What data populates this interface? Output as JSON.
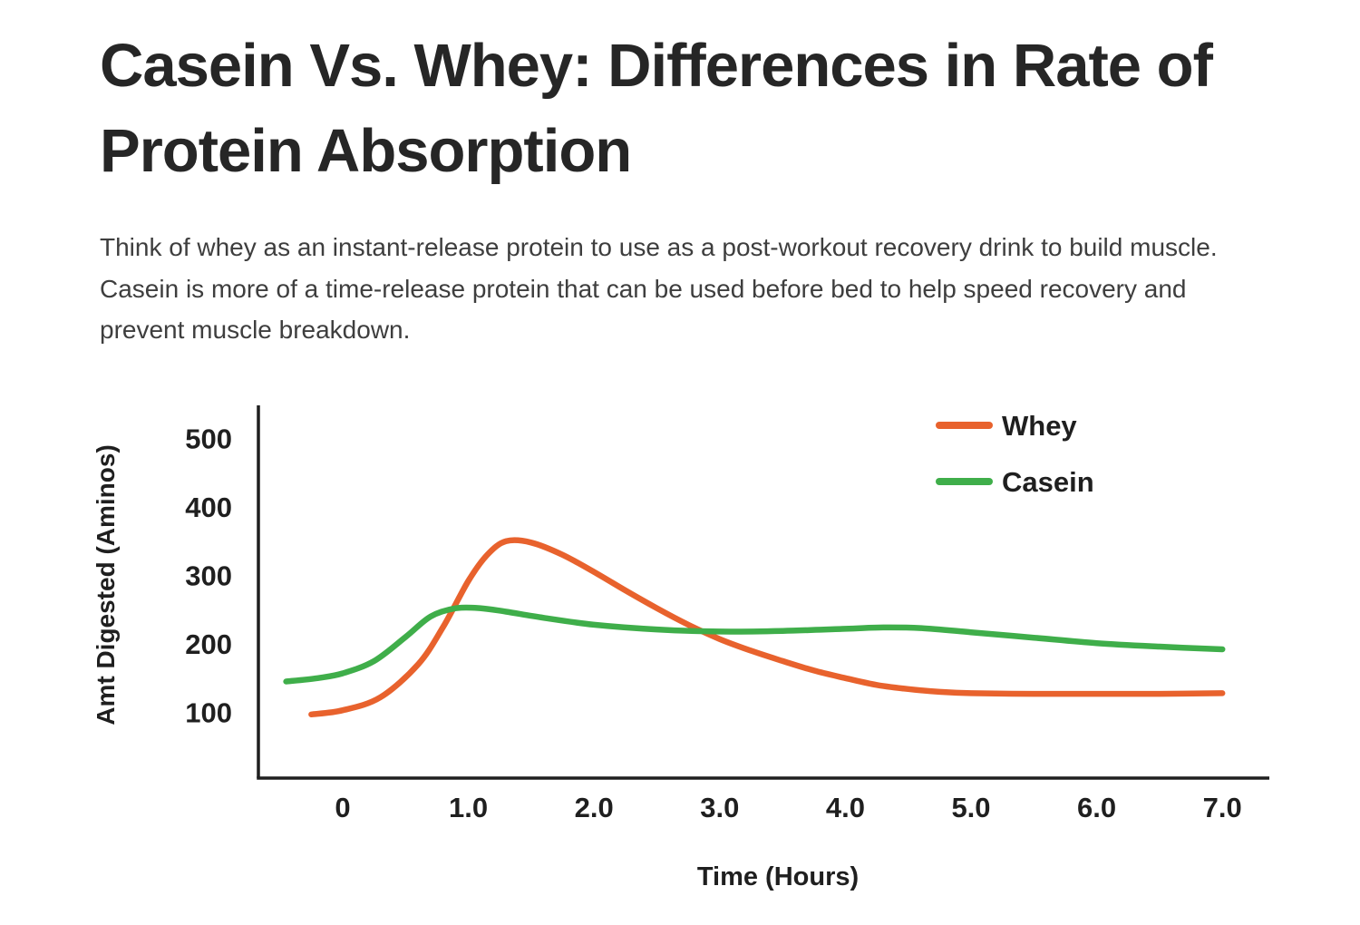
{
  "page": {
    "title": "Casein Vs. Whey: Differences in Rate of Protein Absorption",
    "body": "Think of whey as an instant-release protein to use as a post-workout recovery drink to build muscle. Casein is more of a time-release protein that can be used before bed to help speed recovery and prevent muscle breakdown."
  },
  "chart_data": {
    "type": "line",
    "title": "",
    "xlabel": "Time (Hours)",
    "ylabel": "Amt Digested (Aminos)",
    "xlim": [
      -0.67,
      7.35
    ],
    "ylim": [
      0,
      550
    ],
    "grid": false,
    "legend_position": "top-right",
    "axis_color": "#1f1f1f",
    "x_ticks": [
      0,
      1,
      2,
      3,
      4,
      5,
      6,
      7
    ],
    "x_tick_labels": [
      "0",
      "1.0",
      "2.0",
      "3.0",
      "4.0",
      "5.0",
      "6.0",
      "7.0"
    ],
    "y_ticks": [
      100,
      200,
      300,
      400,
      500
    ],
    "series": [
      {
        "name": "Whey",
        "color": "#E8622D",
        "points": [
          [
            -0.25,
            97
          ],
          [
            0,
            103
          ],
          [
            0.3,
            122
          ],
          [
            0.6,
            170
          ],
          [
            0.8,
            225
          ],
          [
            1.0,
            292
          ],
          [
            1.15,
            330
          ],
          [
            1.3,
            350
          ],
          [
            1.5,
            348
          ],
          [
            1.75,
            330
          ],
          [
            2.0,
            305
          ],
          [
            2.25,
            278
          ],
          [
            2.5,
            252
          ],
          [
            2.75,
            228
          ],
          [
            3.0,
            207
          ],
          [
            3.25,
            190
          ],
          [
            3.5,
            175
          ],
          [
            3.75,
            161
          ],
          [
            4.0,
            150
          ],
          [
            4.25,
            140
          ],
          [
            4.5,
            134
          ],
          [
            4.75,
            130
          ],
          [
            5.0,
            128
          ],
          [
            5.5,
            127
          ],
          [
            6.0,
            127
          ],
          [
            6.5,
            127
          ],
          [
            7.0,
            128
          ]
        ]
      },
      {
        "name": "Casein",
        "color": "#3FAE4A",
        "points": [
          [
            -0.45,
            145
          ],
          [
            -0.2,
            150
          ],
          [
            0,
            157
          ],
          [
            0.25,
            175
          ],
          [
            0.5,
            210
          ],
          [
            0.7,
            240
          ],
          [
            0.9,
            252
          ],
          [
            1.1,
            252
          ],
          [
            1.3,
            247
          ],
          [
            1.6,
            238
          ],
          [
            2.0,
            228
          ],
          [
            2.5,
            221
          ],
          [
            3.0,
            218
          ],
          [
            3.5,
            219
          ],
          [
            4.0,
            222
          ],
          [
            4.3,
            224
          ],
          [
            4.6,
            223
          ],
          [
            5.0,
            217
          ],
          [
            5.5,
            209
          ],
          [
            6.0,
            201
          ],
          [
            6.5,
            196
          ],
          [
            7.0,
            192
          ]
        ]
      }
    ]
  }
}
